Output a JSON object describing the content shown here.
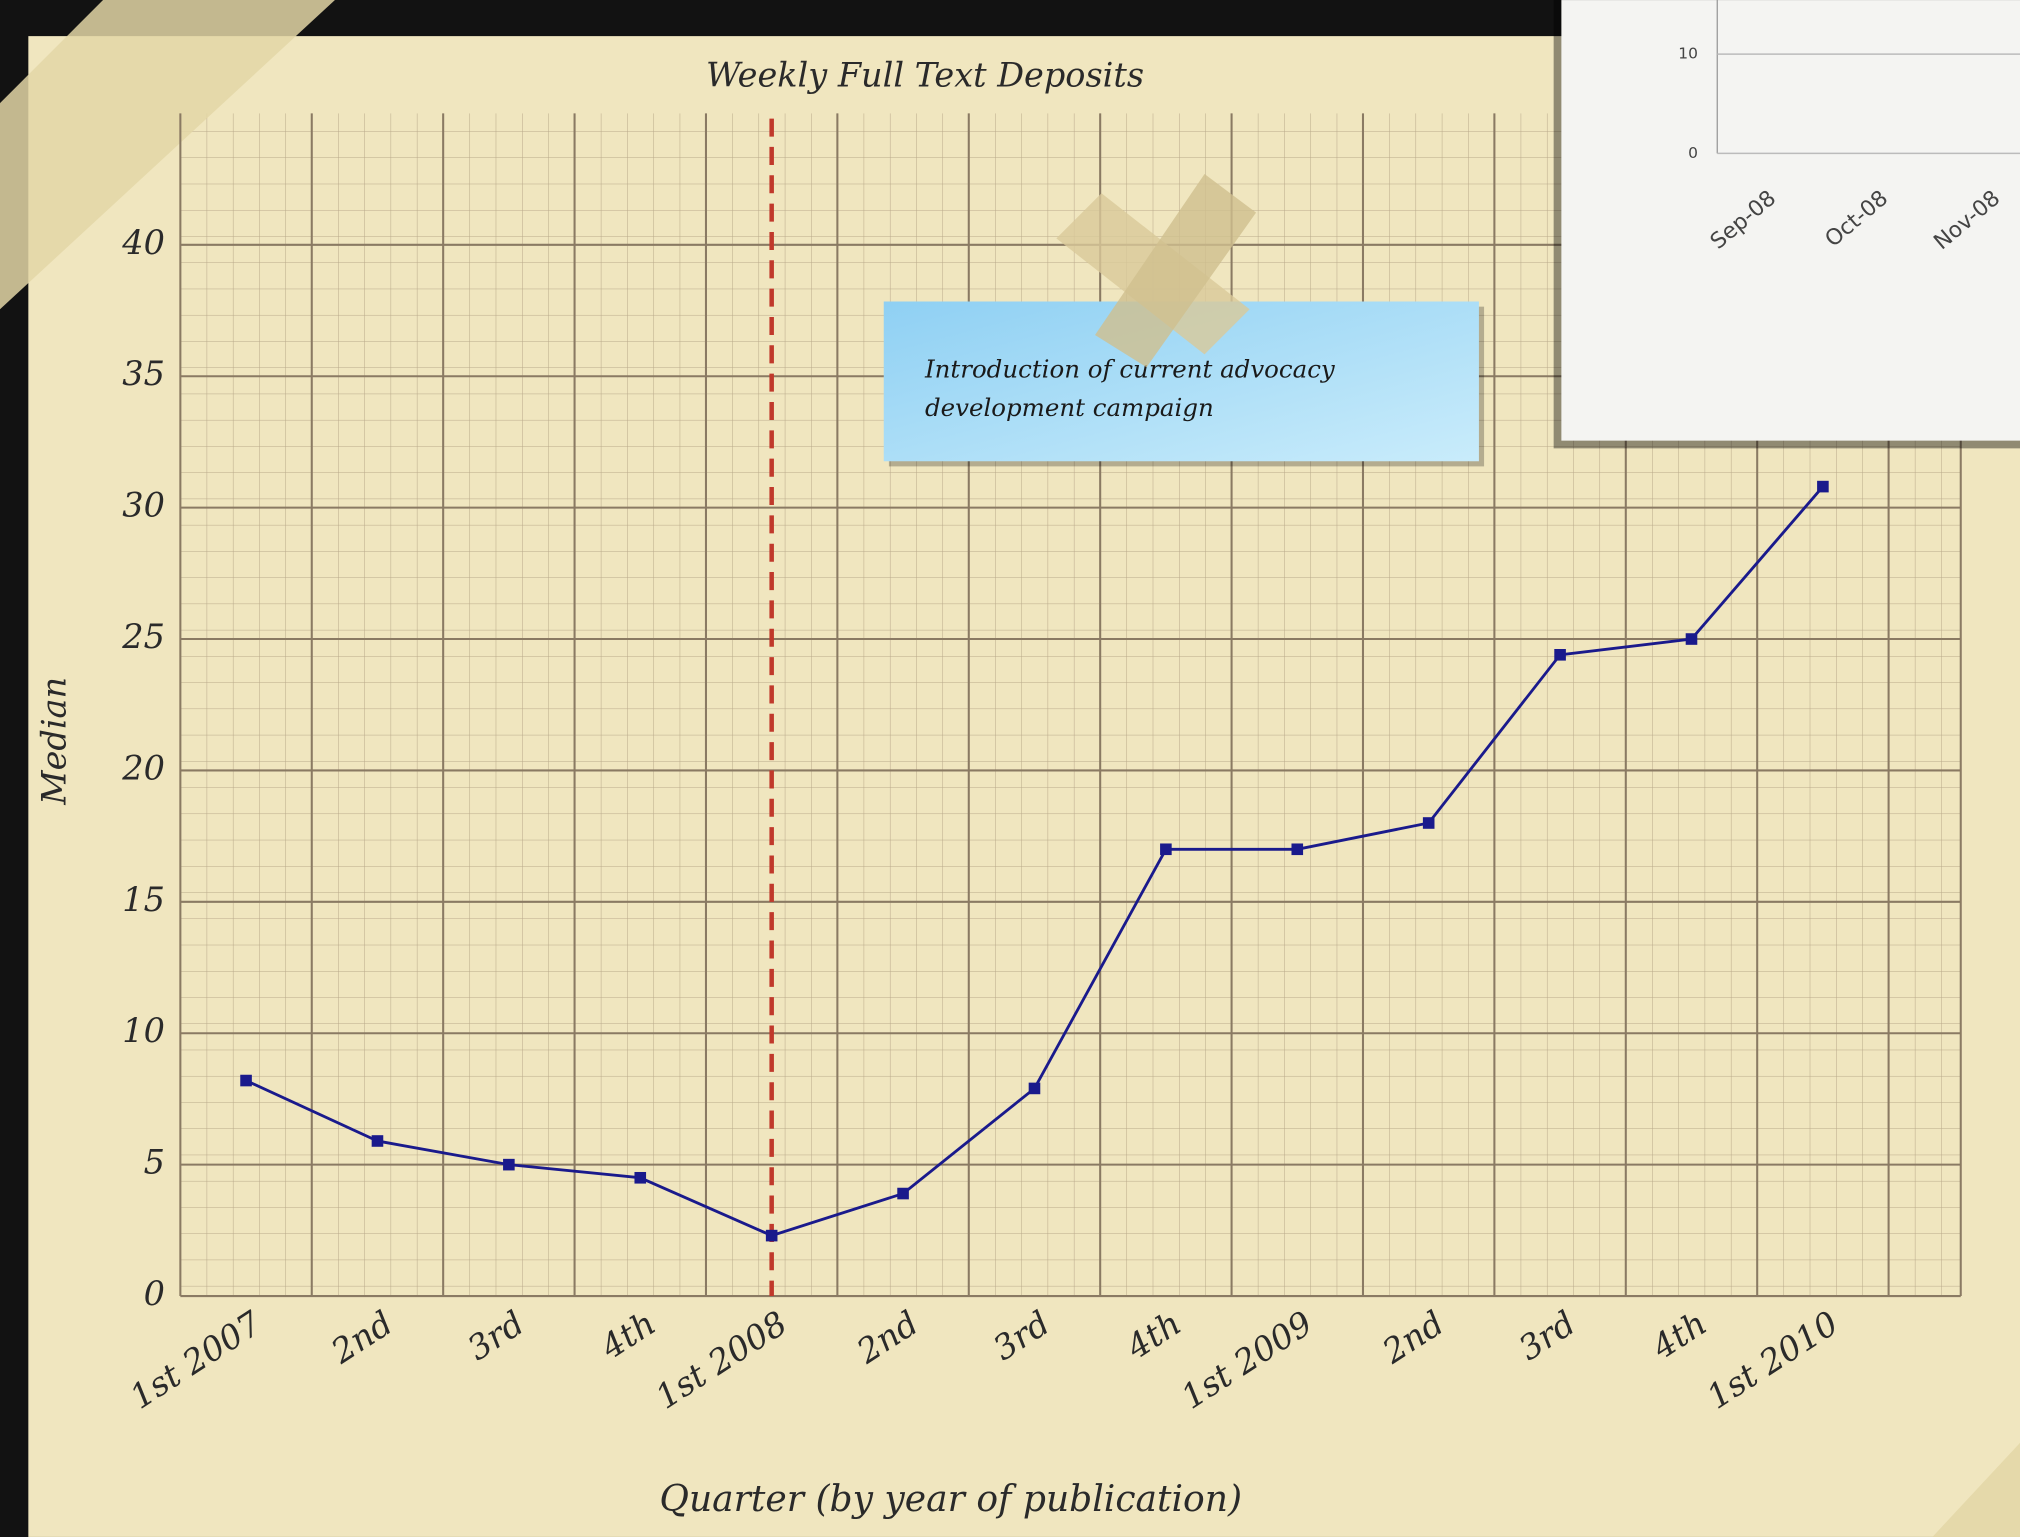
{
  "chart_data": [
    {
      "type": "line",
      "title": "Weekly Full Text Deposits",
      "x_label": "Quarter (by year of publication)",
      "y_label": "Median",
      "categories": [
        "1st 2007",
        "2nd",
        "3rd",
        "4th",
        "1st 2008",
        "2nd",
        "3rd",
        "4th",
        "1st 2009",
        "2nd",
        "3rd",
        "4th",
        "1st 2010"
      ],
      "values": [
        8.2,
        5.9,
        5,
        4.5,
        2.3,
        3.9,
        7.9,
        17,
        17,
        18,
        24.4,
        25,
        30.8
      ],
      "color": "#1a1a8c",
      "ylim": [
        0,
        45
      ],
      "yticks": [
        0,
        5,
        10,
        15,
        20,
        25,
        30,
        35,
        40
      ],
      "grid": true,
      "vline_category": "1st 2008",
      "vline_color": "#c0392b",
      "annotation": "Introduction of current advocacy development campaign"
    },
    {
      "type": "line",
      "categories": [
        "Sep-08",
        "Oct-08",
        "Nov-08"
      ],
      "ylim": [
        0,
        15
      ],
      "yticks": [
        0,
        10
      ],
      "grid": true
    }
  ]
}
